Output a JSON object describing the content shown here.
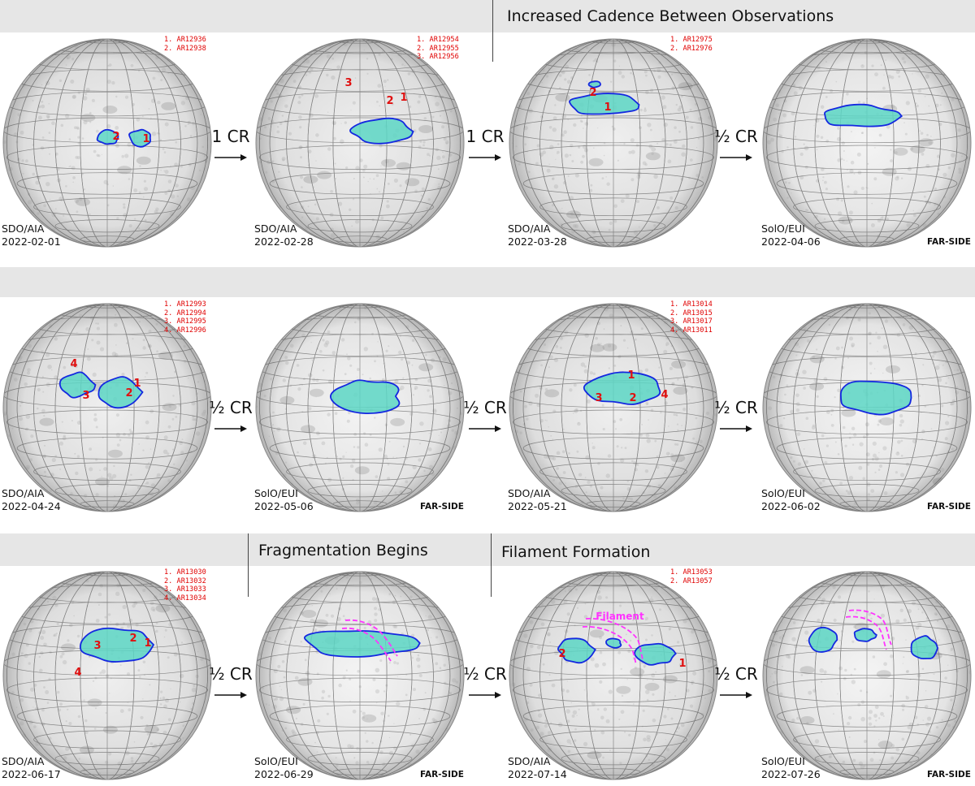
{
  "bands": [
    {
      "title": "Increased Cadence Between Observations"
    },
    {
      "title": "Fragmentation Begins"
    },
    {
      "title": "Filament Formation"
    }
  ],
  "steps": [
    "1 CR",
    "1 CR",
    "½ CR",
    "½ CR",
    "½ CR",
    "½ CR",
    "½ CR",
    "½ CR",
    "½ CR"
  ],
  "far_side_label": "FAR-SIDE",
  "filament_label": "Filament",
  "colors": {
    "region_fill": "#5cd6c4",
    "region_outline": "#1428e0",
    "numbers": "#e01010",
    "filament": "#ff33ff"
  },
  "panels": [
    {
      "instrument": "SDO/AIA",
      "date": "2022-02-01",
      "far_side": false,
      "active_regions": [
        "1. AR12936",
        "2. AR12938"
      ]
    },
    {
      "instrument": "SDO/AIA",
      "date": "2022-02-28",
      "far_side": false,
      "active_regions": [
        "1. AR12954",
        "2. AR12955",
        "3. AR12956"
      ]
    },
    {
      "instrument": "SDO/AIA",
      "date": "2022-03-28",
      "far_side": false,
      "active_regions": [
        "1. AR12975",
        "2. AR12976"
      ]
    },
    {
      "instrument": "SolO/EUI",
      "date": "2022-04-06",
      "far_side": true,
      "active_regions": []
    },
    {
      "instrument": "SDO/AIA",
      "date": "2022-04-24",
      "far_side": false,
      "active_regions": [
        "1. AR12993",
        "2. AR12994",
        "3. AR12995",
        "4. AR12996"
      ]
    },
    {
      "instrument": "SolO/EUI",
      "date": "2022-05-06",
      "far_side": true,
      "active_regions": []
    },
    {
      "instrument": "SDO/AIA",
      "date": "2022-05-21",
      "far_side": false,
      "active_regions": [
        "1. AR13014",
        "2. AR13015",
        "3. AR13017",
        "4. AR13011"
      ]
    },
    {
      "instrument": "SolO/EUI",
      "date": "2022-06-02",
      "far_side": true,
      "active_regions": []
    },
    {
      "instrument": "SDO/AIA",
      "date": "2022-06-17",
      "far_side": false,
      "active_regions": [
        "1. AR13030",
        "2. AR13032",
        "3. AR13033",
        "4. AR13034"
      ]
    },
    {
      "instrument": "SolO/EUI",
      "date": "2022-06-29",
      "far_side": true,
      "active_regions": []
    },
    {
      "instrument": "SDO/AIA",
      "date": "2022-07-14",
      "far_side": false,
      "active_regions": [
        "1. AR13053",
        "2. AR13057"
      ]
    },
    {
      "instrument": "SolO/EUI",
      "date": "2022-07-26",
      "far_side": true,
      "active_regions": []
    }
  ]
}
